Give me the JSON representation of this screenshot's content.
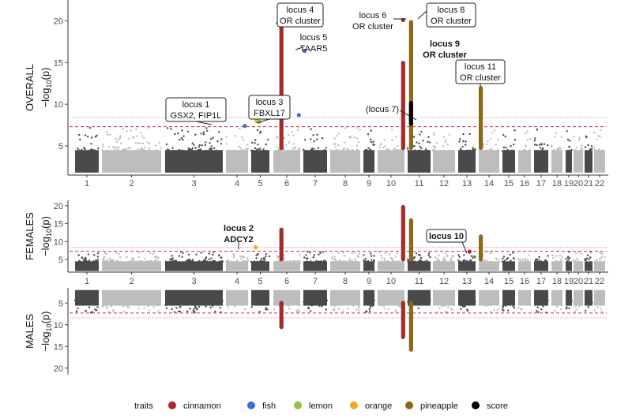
{
  "chart_data": {
    "type": "manhattan",
    "legend": {
      "title": "traits",
      "position": "bottom",
      "entries": [
        {
          "name": "cinnamon",
          "color": "#a52a2a"
        },
        {
          "name": "fish",
          "color": "#3d6fd4"
        },
        {
          "name": "lemon",
          "color": "#8dc63f"
        },
        {
          "name": "orange",
          "color": "#f5a623"
        },
        {
          "name": "pineapple",
          "color": "#8b6914"
        },
        {
          "name": "score",
          "color": "#000000"
        }
      ]
    },
    "chromosomes": [
      "1",
      "2",
      "3",
      "4",
      "5",
      "6",
      "7",
      "8",
      "9",
      "10",
      "11",
      "12",
      "13",
      "14",
      "15",
      "16",
      "17",
      "18",
      "19",
      "20",
      "21",
      "22"
    ],
    "chrom_colors": {
      "odd": "#4a4a4a",
      "even": "#bdbdbd"
    },
    "ylabel": "−log10(p)",
    "thresholds": {
      "suggestive": 8.4,
      "genome_wide": 7.3
    },
    "panels": [
      {
        "name": "OVERALL",
        "ylabel_prefix": "−log",
        "ylabel_sub": "10",
        "ylabel_suffix": "(p)",
        "ylim": [
          1.5,
          22.5
        ],
        "yticks": [
          "5",
          "10",
          "15",
          "20"
        ],
        "ytick_values": [
          5,
          10,
          15,
          20
        ],
        "inverted": false,
        "peaks": [
          {
            "chrom": 6,
            "pos": 0.3,
            "trait": "cinnamon",
            "ymax": 20.2
          },
          {
            "chrom": 11,
            "pos": 0.15,
            "trait": "pineapple",
            "ymax": 20.1
          },
          {
            "chrom": 11,
            "pos": 0.15,
            "trait": "score",
            "ymax": 10.4,
            "ymin": 7.4
          },
          {
            "chrom": 10,
            "pos": 0.95,
            "trait": "cinnamon",
            "ymax": 15.2
          },
          {
            "chrom": 14,
            "pos": 0.1,
            "trait": "pineapple",
            "ymax": 12.2
          }
        ],
        "points": [
          {
            "chrom": 4,
            "pos": 0.85,
            "trait": "fish",
            "y": 7.4
          },
          {
            "chrom": 5,
            "pos": 0.3,
            "trait": "orange",
            "y": 8.0
          },
          {
            "chrom": 5,
            "pos": 0.45,
            "trait": "lemon",
            "y": 7.9
          },
          {
            "chrom": 6,
            "pos": 0.95,
            "trait": "fish",
            "y": 8.7
          },
          {
            "chrom": 7,
            "pos": 0.05,
            "trait": "fish",
            "y": 16.4
          },
          {
            "chrom": 10,
            "pos": 0.95,
            "trait": "cinnamon",
            "y": 20.1
          }
        ],
        "annotations": [
          {
            "lines": [
              "locus 1",
              "GSX2, FIP1L"
            ],
            "bold": false,
            "box": true
          },
          {
            "lines": [
              "locus 3",
              "FBXL17"
            ],
            "bold": false,
            "box": true
          },
          {
            "lines": [
              "locus 4",
              "OR cluster"
            ],
            "bold": false,
            "box": true
          },
          {
            "lines": [
              "locus 5",
              "TAAR5"
            ],
            "bold": false,
            "box": false
          },
          {
            "lines": [
              "locus 6",
              "OR cluster"
            ],
            "bold": false,
            "box": false
          },
          {
            "lines": [
              "locus 8",
              "OR cluster"
            ],
            "bold": false,
            "box": true
          },
          {
            "lines": [
              "locus 9",
              "OR cluster"
            ],
            "bold": true,
            "box": false
          },
          {
            "lines": [
              "(locus 7)"
            ],
            "bold": false,
            "box": false
          },
          {
            "lines": [
              "locus 11",
              "OR cluster"
            ],
            "bold": false,
            "box": true
          }
        ]
      },
      {
        "name": "FEMALES",
        "ylabel_prefix": "−log",
        "ylabel_sub": "10",
        "ylabel_suffix": "(p)",
        "ylim": [
          1.5,
          21.5
        ],
        "yticks": [
          "5",
          "10",
          "15",
          "20"
        ],
        "ytick_values": [
          5,
          10,
          15,
          20
        ],
        "inverted": false,
        "peaks": [
          {
            "chrom": 6,
            "pos": 0.3,
            "trait": "cinnamon",
            "ymax": 13.9
          },
          {
            "chrom": 10,
            "pos": 0.95,
            "trait": "cinnamon",
            "ymax": 20.2
          },
          {
            "chrom": 11,
            "pos": 0.15,
            "trait": "pineapple",
            "ymax": 16.5
          },
          {
            "chrom": 14,
            "pos": 0.1,
            "trait": "pineapple",
            "ymax": 12.0
          }
        ],
        "points": [
          {
            "chrom": 5,
            "pos": 0.25,
            "trait": "orange",
            "y": 8.4
          },
          {
            "chrom": 13,
            "pos": 0.65,
            "trait": "cinnamon",
            "y": 7.2
          }
        ],
        "annotations": [
          {
            "lines": [
              "locus 2",
              "ADCY2"
            ],
            "bold": true,
            "box": false
          },
          {
            "lines": [
              "locus 10"
            ],
            "bold": true,
            "box": true
          }
        ]
      },
      {
        "name": "MALES",
        "ylabel_prefix": "−log",
        "ylabel_sub": "10",
        "ylabel_suffix": "(p)",
        "ylim": [
          1.5,
          21.5
        ],
        "yticks": [
          "5",
          "10",
          "15",
          "20"
        ],
        "ytick_values": [
          5,
          10,
          15,
          20
        ],
        "inverted": true,
        "peaks": [
          {
            "chrom": 6,
            "pos": 0.3,
            "trait": "cinnamon",
            "ymax": 11.0
          },
          {
            "chrom": 10,
            "pos": 0.95,
            "trait": "cinnamon",
            "ymax": 13.3
          },
          {
            "chrom": 11,
            "pos": 0.15,
            "trait": "pineapple",
            "ymax": 16.2
          }
        ],
        "points": [],
        "annotations": []
      }
    ]
  }
}
